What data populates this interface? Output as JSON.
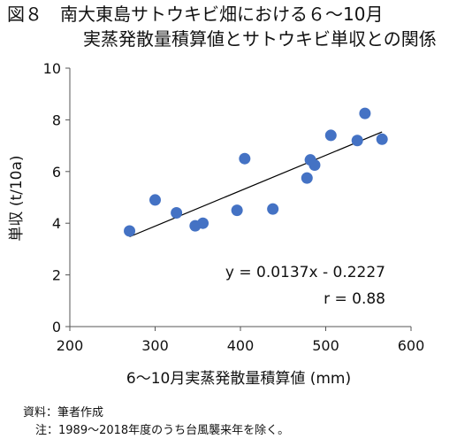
{
  "figure": {
    "title_line1": "図８　南大東島サトウキビ畑における６～10月",
    "title_line2": "実蒸発散量積算値とサトウキビ単収との関係",
    "source_note": "資料：筆者作成",
    "footnote": "注：1989～2018年度のうち台風襲来年を除く。"
  },
  "chart_data": {
    "type": "scatter",
    "xlabel": "6～10月実蒸発散量積算値 (mm)",
    "ylabel": "単収 (t/10a)",
    "xlim": [
      200,
      600
    ],
    "ylim": [
      0,
      10
    ],
    "x_ticks": [
      "200",
      "300",
      "400",
      "500",
      "600"
    ],
    "y_ticks": [
      "0",
      "2",
      "4",
      "6",
      "8",
      "10"
    ],
    "x_tick_values": [
      200,
      300,
      400,
      500,
      600
    ],
    "y_tick_values": [
      0,
      2,
      4,
      6,
      8,
      10
    ],
    "grid": false,
    "points": [
      {
        "x": 270,
        "y": 3.7
      },
      {
        "x": 300,
        "y": 4.9
      },
      {
        "x": 325,
        "y": 4.4
      },
      {
        "x": 347,
        "y": 3.9
      },
      {
        "x": 356,
        "y": 4.0
      },
      {
        "x": 396,
        "y": 4.5
      },
      {
        "x": 405,
        "y": 6.5
      },
      {
        "x": 438,
        "y": 4.55
      },
      {
        "x": 478,
        "y": 5.75
      },
      {
        "x": 482,
        "y": 6.45
      },
      {
        "x": 487,
        "y": 6.25
      },
      {
        "x": 506,
        "y": 7.4
      },
      {
        "x": 537,
        "y": 7.2
      },
      {
        "x": 546,
        "y": 8.25
      },
      {
        "x": 566,
        "y": 7.25
      }
    ],
    "trendline": {
      "slope": 0.0137,
      "intercept": -0.2227,
      "x_range": [
        270,
        566
      ]
    },
    "equation_label": "y = 0.0137x - 0.2227",
    "r_label": "r = 0.88",
    "marker_color": "#4472c4",
    "line_color": "#000000"
  }
}
